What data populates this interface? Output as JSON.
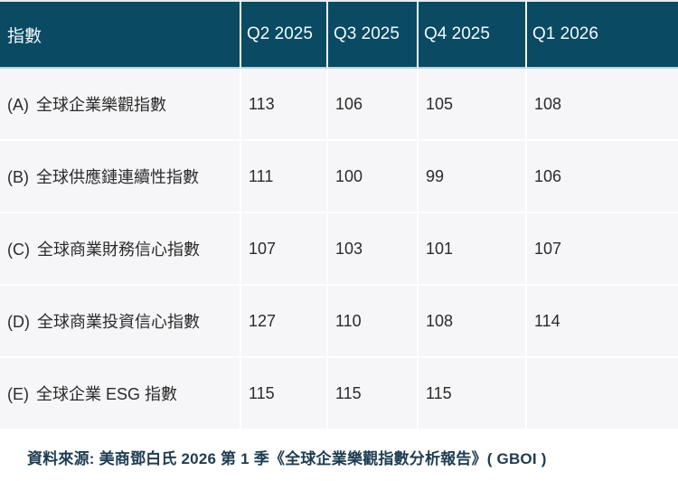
{
  "table": {
    "columns": [
      "指數",
      "Q2 2025",
      "Q3 2025",
      "Q4 2025",
      "Q1 2026"
    ],
    "rows": [
      {
        "prefix": "(A)",
        "label": "全球企業樂觀指數",
        "values": [
          "113",
          "106",
          "105",
          "108"
        ]
      },
      {
        "prefix": "(B)",
        "label": "全球供應鏈連續性指數",
        "values": [
          "111",
          "100",
          "99",
          "106"
        ]
      },
      {
        "prefix": "(C)",
        "label": "全球商業財務信心指數",
        "values": [
          "107",
          "103",
          "101",
          "107"
        ]
      },
      {
        "prefix": "(D)",
        "label": "全球商業投資信心指數",
        "values": [
          "127",
          "110",
          "108",
          "114"
        ]
      },
      {
        "prefix": "(E)",
        "label": "全球企業 ESG 指數",
        "values": [
          "115",
          "115",
          "115",
          ""
        ]
      }
    ]
  },
  "footer": {
    "source": "資料來源: 美商鄧白氏 2026 第 1 季《全球企業樂觀指數分析報告》( GBOI )"
  },
  "colors": {
    "header_bg": "#0a4a63",
    "header_text": "#f4fafc",
    "header_underline": "#b6d8e2",
    "row_bg": "#f6f6f8",
    "cell_separator": "#ffffff",
    "body_text": "#2b2b2b",
    "footer_text": "#1e3c51"
  },
  "chart_data": {
    "type": "table",
    "title": "指數",
    "categories": [
      "Q2 2025",
      "Q3 2025",
      "Q4 2025",
      "Q1 2026"
    ],
    "series": [
      {
        "name": "(A) 全球企業樂觀指數",
        "values": [
          113,
          106,
          105,
          108
        ]
      },
      {
        "name": "(B) 全球供應鏈連續性指數",
        "values": [
          111,
          100,
          99,
          106
        ]
      },
      {
        "name": "(C) 全球商業財務信心指數",
        "values": [
          107,
          103,
          101,
          107
        ]
      },
      {
        "name": "(D) 全球商業投資信心指數",
        "values": [
          127,
          110,
          108,
          114
        ]
      },
      {
        "name": "(E) 全球企業 ESG 指數",
        "values": [
          115,
          115,
          115,
          null
        ]
      }
    ],
    "annotations": [
      "資料來源: 美商鄧白氏 2026 第 1 季《全球企業樂觀指數分析報告》( GBOI )"
    ],
    "layout": {
      "header_position": "top",
      "grid": "white-separators"
    }
  }
}
